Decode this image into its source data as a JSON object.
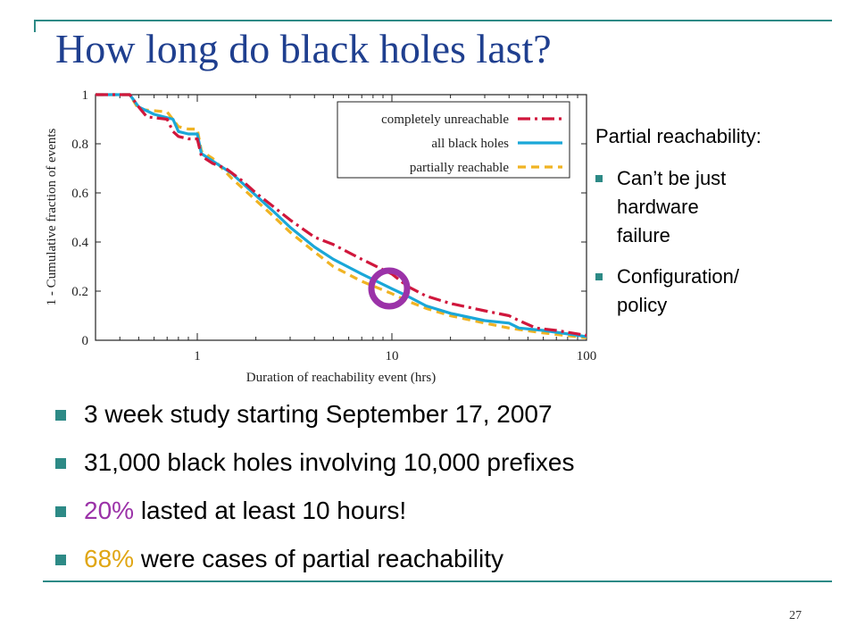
{
  "slide": {
    "title": "How long do black holes last?",
    "page_number": "27"
  },
  "side_note": {
    "heading": "Partial reachability:",
    "items": [
      {
        "line1": "Can’t be just",
        "line2": "hardware",
        "line3": "failure"
      },
      {
        "line1": "Configuration/",
        "line2": "policy"
      }
    ]
  },
  "bullets": [
    {
      "highlight": "",
      "text": "3 week study starting September 17, 2007"
    },
    {
      "highlight": "",
      "text": "31,000 black holes involving 10,000 prefixes"
    },
    {
      "highlight": "20%",
      "text": " lasted at least 10 hours!"
    },
    {
      "highlight": "68%",
      "text": " were cases of partial reachability"
    }
  ],
  "colors": {
    "accent": "#2d8a86",
    "title": "#1f3f8f",
    "purple": "#9b32a8",
    "gold": "#e0a614",
    "completely_unreachable": "#d0173c",
    "all_black_holes": "#1aa7d8",
    "partially_reachable": "#f0b323"
  },
  "chart_data": {
    "type": "line",
    "xscale": "log",
    "xlim": [
      0.3,
      100
    ],
    "ylim": [
      0,
      1
    ],
    "xticks": [
      "1",
      "10",
      "100"
    ],
    "yticks": [
      "0",
      "0.2",
      "0.4",
      "0.6",
      "0.8",
      "1"
    ],
    "xlabel": "Duration of reachability event (hrs)",
    "ylabel": "1 - Cumulative fraction of events",
    "legend_position": "top-right",
    "annotation": {
      "type": "circle",
      "x": 10,
      "y": 0.2,
      "color": "#9b32a8"
    },
    "series": [
      {
        "name": "completely unreachable",
        "style": "dash-dot",
        "color": "#d0173c",
        "points": [
          [
            0.3,
            1
          ],
          [
            0.45,
            1
          ],
          [
            0.5,
            0.95
          ],
          [
            0.55,
            0.91
          ],
          [
            0.7,
            0.9
          ],
          [
            0.75,
            0.85
          ],
          [
            0.8,
            0.83
          ],
          [
            0.9,
            0.82
          ],
          [
            1.0,
            0.82
          ],
          [
            1.05,
            0.75
          ],
          [
            1.2,
            0.72
          ],
          [
            1.4,
            0.7
          ],
          [
            1.7,
            0.65
          ],
          [
            2,
            0.6
          ],
          [
            2.5,
            0.54
          ],
          [
            3,
            0.49
          ],
          [
            4,
            0.42
          ],
          [
            5,
            0.39
          ],
          [
            7,
            0.33
          ],
          [
            10,
            0.27
          ],
          [
            12,
            0.22
          ],
          [
            15,
            0.18
          ],
          [
            20,
            0.15
          ],
          [
            30,
            0.12
          ],
          [
            40,
            0.1
          ],
          [
            45,
            0.08
          ],
          [
            55,
            0.05
          ],
          [
            70,
            0.04
          ],
          [
            100,
            0.02
          ]
        ]
      },
      {
        "name": "all black holes",
        "style": "solid",
        "color": "#1aa7d8",
        "points": [
          [
            0.3,
            1
          ],
          [
            0.45,
            1
          ],
          [
            0.5,
            0.95
          ],
          [
            0.6,
            0.92
          ],
          [
            0.75,
            0.9
          ],
          [
            0.8,
            0.85
          ],
          [
            0.9,
            0.84
          ],
          [
            1.0,
            0.84
          ],
          [
            1.05,
            0.76
          ],
          [
            1.2,
            0.73
          ],
          [
            1.5,
            0.68
          ],
          [
            2,
            0.59
          ],
          [
            2.5,
            0.52
          ],
          [
            3,
            0.46
          ],
          [
            4,
            0.38
          ],
          [
            5,
            0.33
          ],
          [
            7,
            0.27
          ],
          [
            10,
            0.21
          ],
          [
            12,
            0.18
          ],
          [
            15,
            0.14
          ],
          [
            20,
            0.11
          ],
          [
            30,
            0.08
          ],
          [
            40,
            0.07
          ],
          [
            45,
            0.05
          ],
          [
            60,
            0.04
          ],
          [
            100,
            0.015
          ]
        ]
      },
      {
        "name": "partially reachable",
        "style": "dashed",
        "color": "#f0b323",
        "points": [
          [
            0.3,
            1
          ],
          [
            0.45,
            1
          ],
          [
            0.5,
            0.94
          ],
          [
            0.7,
            0.93
          ],
          [
            0.8,
            0.87
          ],
          [
            0.9,
            0.86
          ],
          [
            1.0,
            0.86
          ],
          [
            1.05,
            0.77
          ],
          [
            1.2,
            0.74
          ],
          [
            1.5,
            0.66
          ],
          [
            2,
            0.57
          ],
          [
            2.5,
            0.5
          ],
          [
            3,
            0.44
          ],
          [
            4,
            0.36
          ],
          [
            5,
            0.3
          ],
          [
            7,
            0.24
          ],
          [
            10,
            0.19
          ],
          [
            12,
            0.16
          ],
          [
            15,
            0.13
          ],
          [
            20,
            0.1
          ],
          [
            30,
            0.07
          ],
          [
            40,
            0.05
          ],
          [
            60,
            0.03
          ],
          [
            100,
            0.01
          ]
        ]
      }
    ]
  }
}
